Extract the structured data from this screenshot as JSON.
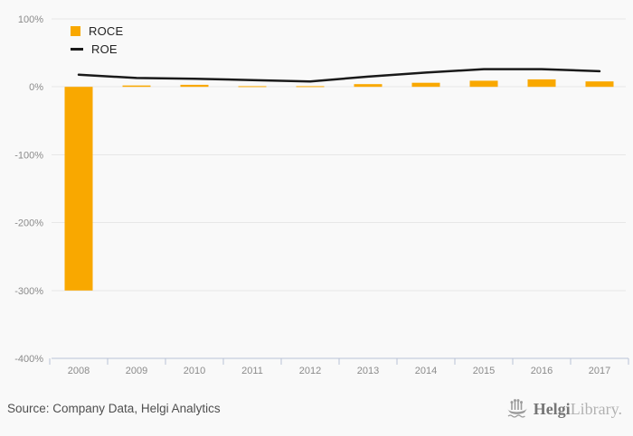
{
  "chart_data": {
    "type": "combo",
    "categories": [
      "2008",
      "2009",
      "2010",
      "2011",
      "2012",
      "2013",
      "2014",
      "2015",
      "2016",
      "2017"
    ],
    "series": [
      {
        "name": "ROCE",
        "type": "bar",
        "color": "#F9A800",
        "values": [
          -300,
          2,
          3,
          1,
          1,
          4,
          6,
          9,
          11,
          8
        ]
      },
      {
        "name": "ROE",
        "type": "line",
        "color": "#1A1A1A",
        "values": [
          18,
          13,
          12,
          10,
          8,
          15,
          21,
          26,
          26,
          23
        ]
      }
    ],
    "title": "",
    "xlabel": "",
    "ylabel": "",
    "ylim": [
      -400,
      100
    ],
    "y_ticks": [
      100,
      0,
      -100,
      -200,
      -300,
      -400
    ],
    "y_tick_labels": [
      "100%",
      "0%",
      "-100%",
      "-200%",
      "-300%",
      "-400%"
    ],
    "grid": true,
    "legend_position": "top-left"
  },
  "colors": {
    "background": "#F9F9F9",
    "bar": "#F9A800",
    "line": "#1A1A1A",
    "gridline": "#E7E7E7",
    "axis": "#B9C2D6",
    "tick_label": "#8B8B8B",
    "legend_text": "#222222"
  },
  "footer": {
    "source": "Source: Company Data, Helgi Analytics",
    "logo": {
      "bold": "Helgi",
      "light": "Library.",
      "icon": "viking-ship"
    }
  }
}
